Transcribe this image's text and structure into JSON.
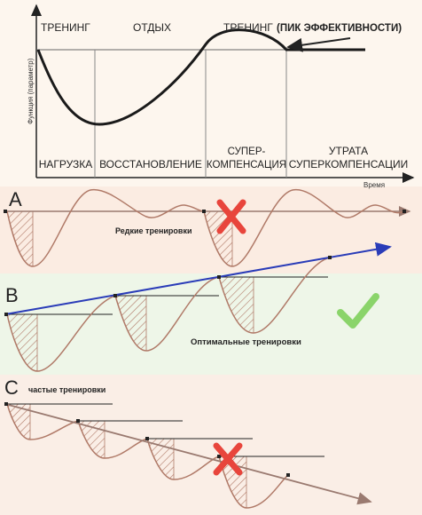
{
  "top_chart": {
    "phases_top": [
      "ТРЕНИНГ",
      "ОТДЫХ",
      "ТРЕНИНГ"
    ],
    "peak_label": "(ПИК ЭФФЕКТИВНОСТИ)",
    "phases_bottom": [
      "НАГРУЗКА",
      "ВОССТАНОВЛЕНИЕ",
      "СУПЕР-",
      "КОМПЕНСАЦИЯ",
      "УТРАТА",
      "СУПЕРКОМПЕНСАЦИИ"
    ],
    "y_axis_label": "Функция (параметр)",
    "x_axis_label": "Время"
  },
  "panels": {
    "a": {
      "letter": "A",
      "caption": "Редкие тренировки",
      "verdict": "cross"
    },
    "b": {
      "letter": "B",
      "caption": "Оптимальные тренировки",
      "verdict": "check"
    },
    "c": {
      "letter": "C",
      "caption": "частые тренировки",
      "verdict": "cross"
    }
  },
  "colors": {
    "curve": "#1a1a1a",
    "wave": "#b07a68",
    "hatch": "#b07a68",
    "trend_b": "#2a3cb8",
    "trend_a": "#9a7a70",
    "cross": "#e8453c",
    "check": "#8ad46a",
    "bg_top": "#fdf6ee",
    "bg_a": "#fbece2",
    "bg_b": "#eef6e8",
    "bg_c": "#faeee6"
  }
}
